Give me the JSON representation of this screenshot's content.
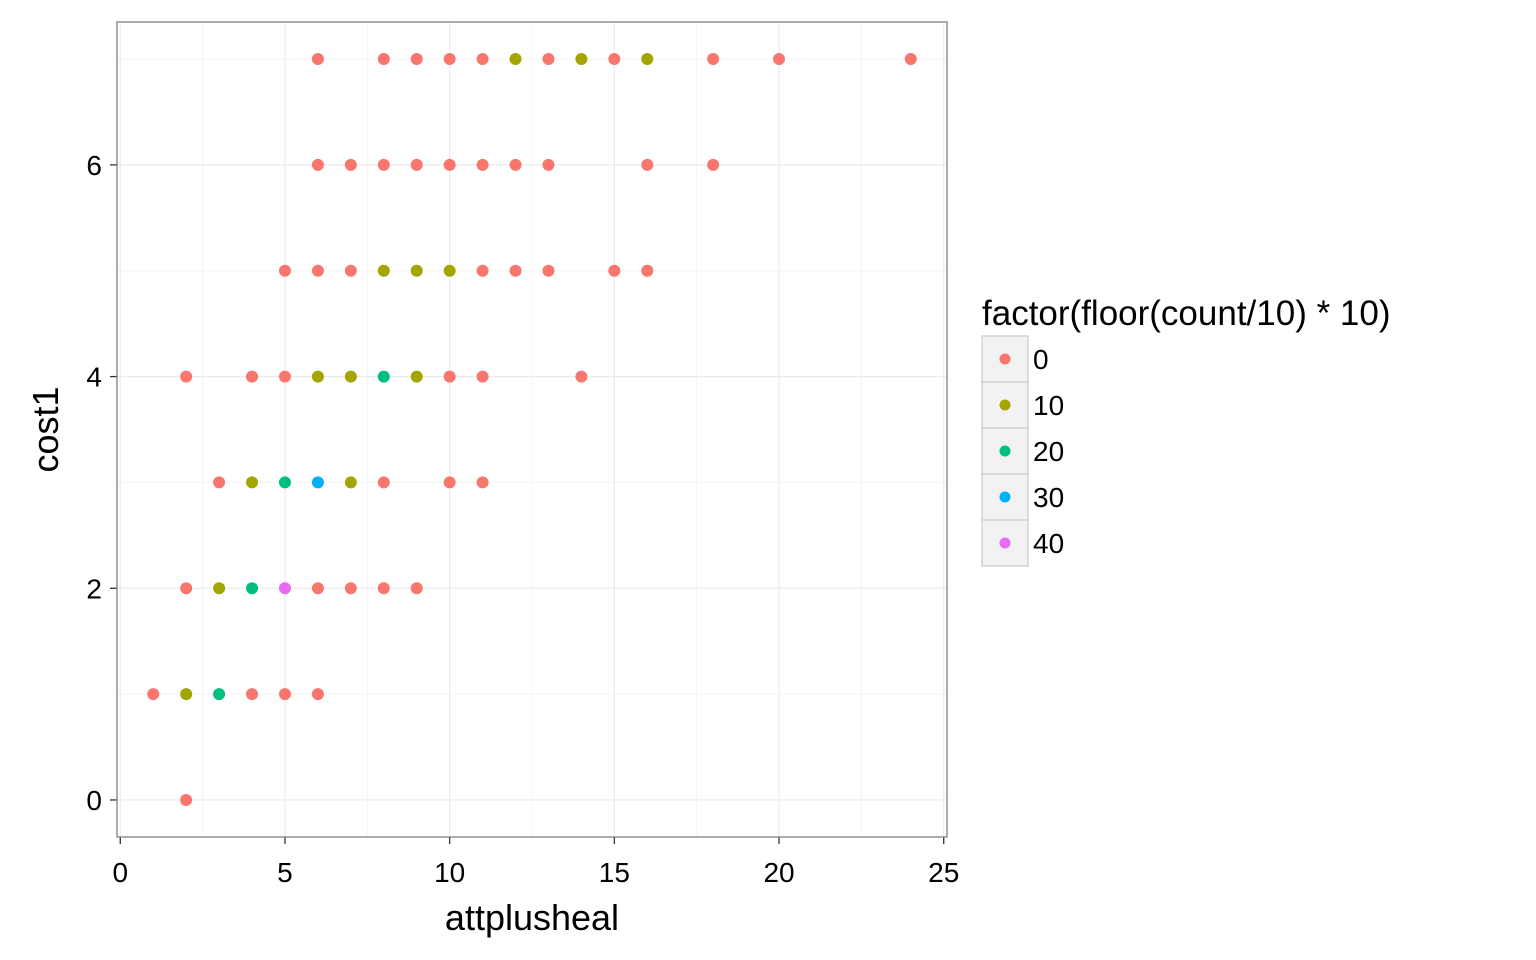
{
  "chart_data": {
    "type": "scatter",
    "xlabel": "attplusheal",
    "ylabel": "cost1",
    "xlim": [
      -0.1,
      25.1
    ],
    "ylim": [
      -0.35,
      7.35
    ],
    "xticks": [
      0,
      5,
      10,
      15,
      20,
      25
    ],
    "yticks": [
      0,
      2,
      4,
      6
    ],
    "grid": true,
    "legend": {
      "title": "factor(floor(count/10) * 10)",
      "position": "right",
      "entries": [
        {
          "label": "0",
          "color": "#F8766D"
        },
        {
          "label": "10",
          "color": "#A3A500"
        },
        {
          "label": "20",
          "color": "#00BF7D"
        },
        {
          "label": "30",
          "color": "#00B0F6"
        },
        {
          "label": "40",
          "color": "#E76BF3"
        }
      ]
    },
    "series": [
      {
        "name": "0",
        "color": "#F8766D",
        "points": [
          [
            6,
            7
          ],
          [
            8,
            7
          ],
          [
            9,
            7
          ],
          [
            10,
            7
          ],
          [
            11,
            7
          ],
          [
            13,
            7
          ],
          [
            15,
            7
          ],
          [
            18,
            7
          ],
          [
            20,
            7
          ],
          [
            24,
            7
          ],
          [
            6,
            6
          ],
          [
            7,
            6
          ],
          [
            8,
            6
          ],
          [
            9,
            6
          ],
          [
            10,
            6
          ],
          [
            11,
            6
          ],
          [
            12,
            6
          ],
          [
            13,
            6
          ],
          [
            16,
            6
          ],
          [
            18,
            6
          ],
          [
            5,
            5
          ],
          [
            6,
            5
          ],
          [
            7,
            5
          ],
          [
            11,
            5
          ],
          [
            12,
            5
          ],
          [
            13,
            5
          ],
          [
            15,
            5
          ],
          [
            16,
            5
          ],
          [
            2,
            4
          ],
          [
            4,
            4
          ],
          [
            5,
            4
          ],
          [
            10,
            4
          ],
          [
            11,
            4
          ],
          [
            14,
            4
          ],
          [
            3,
            3
          ],
          [
            8,
            3
          ],
          [
            10,
            3
          ],
          [
            11,
            3
          ],
          [
            2,
            2
          ],
          [
            6,
            2
          ],
          [
            7,
            2
          ],
          [
            8,
            2
          ],
          [
            9,
            2
          ],
          [
            1,
            1
          ],
          [
            4,
            1
          ],
          [
            5,
            1
          ],
          [
            6,
            1
          ],
          [
            2,
            0
          ]
        ]
      },
      {
        "name": "10",
        "color": "#A3A500",
        "points": [
          [
            12,
            7
          ],
          [
            14,
            7
          ],
          [
            16,
            7
          ],
          [
            8,
            5
          ],
          [
            9,
            5
          ],
          [
            10,
            5
          ],
          [
            6,
            4
          ],
          [
            7,
            4
          ],
          [
            9,
            4
          ],
          [
            4,
            3
          ],
          [
            7,
            3
          ],
          [
            3,
            2
          ],
          [
            2,
            1
          ]
        ]
      },
      {
        "name": "20",
        "color": "#00BF7D",
        "points": [
          [
            8,
            4
          ],
          [
            5,
            3
          ],
          [
            4,
            2
          ],
          [
            3,
            1
          ]
        ]
      },
      {
        "name": "30",
        "color": "#00B0F6",
        "points": [
          [
            6,
            3
          ]
        ]
      },
      {
        "name": "40",
        "color": "#E76BF3",
        "points": [
          [
            5,
            2
          ]
        ]
      }
    ]
  }
}
